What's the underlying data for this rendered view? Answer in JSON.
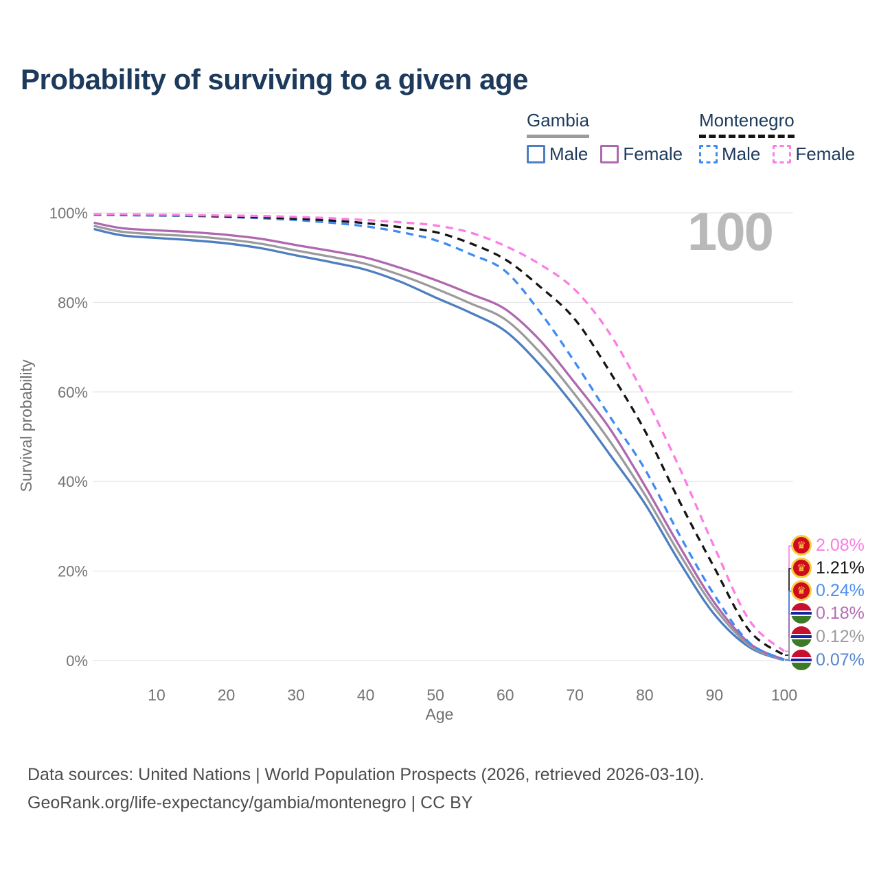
{
  "title": "Probability of surviving to a given age",
  "watermark_age": "100",
  "legend": {
    "groups": [
      {
        "label": "Gambia",
        "line_style": "solid",
        "line_color": "#9b9b9b",
        "items": [
          {
            "label": "Male",
            "color": "#4d7ec0"
          },
          {
            "label": "Female",
            "color": "#ae68af"
          }
        ]
      },
      {
        "label": "Montenegro",
        "line_style": "dashed",
        "line_color": "#151515",
        "items": [
          {
            "label": "Male",
            "color": "#3e8cf3"
          },
          {
            "label": "Female",
            "color": "#fb7de5"
          }
        ]
      }
    ]
  },
  "chart_data": {
    "type": "line",
    "title": "Probability of surviving to a given age",
    "xlabel": "Age",
    "ylabel": "Survival probability",
    "xlim": [
      1,
      100
    ],
    "ylim": [
      0,
      100
    ],
    "grid": "horizontal-only",
    "x_tick_values": [
      10,
      20,
      30,
      40,
      50,
      60,
      70,
      80,
      90,
      100
    ],
    "x_ticks": [
      "10",
      "20",
      "30",
      "40",
      "50",
      "60",
      "70",
      "80",
      "90",
      "100"
    ],
    "y_tick_values": [
      0,
      20,
      40,
      60,
      80,
      100
    ],
    "y_ticks": [
      "0%",
      "20%",
      "40%",
      "60%",
      "80%",
      "100%"
    ],
    "x": [
      1,
      5,
      10,
      15,
      20,
      25,
      30,
      35,
      40,
      45,
      50,
      55,
      60,
      65,
      70,
      75,
      80,
      85,
      90,
      95,
      100
    ],
    "series": [
      {
        "name": "gambia-male",
        "country": "Gambia",
        "sex": "Male",
        "style": "solid",
        "color": "#4d7ec0",
        "end_label": "0.07%",
        "values": [
          96.4,
          95.0,
          94.4,
          93.9,
          93.2,
          92.1,
          90.5,
          89.0,
          87.3,
          84.6,
          81.1,
          77.7,
          73.6,
          66.0,
          56.6,
          46.0,
          35.1,
          22.0,
          10.3,
          3.0,
          0.07
        ]
      },
      {
        "name": "gambia-combined",
        "country": "Gambia",
        "sex": "Both",
        "style": "solid",
        "color": "#9b9b9b",
        "end_label": "0.12%",
        "values": [
          97.1,
          95.8,
          95.2,
          94.8,
          94.1,
          93.1,
          91.6,
          90.2,
          88.6,
          86.1,
          83.1,
          79.8,
          76.2,
          68.8,
          59.4,
          49.0,
          37.1,
          23.8,
          11.8,
          3.4,
          0.12
        ]
      },
      {
        "name": "gambia-female",
        "country": "Gambia",
        "sex": "Female",
        "style": "solid",
        "color": "#ae68af",
        "end_label": "0.18%",
        "values": [
          97.8,
          96.6,
          96.1,
          95.7,
          95.1,
          94.2,
          92.8,
          91.5,
          90.0,
          87.7,
          85.0,
          81.9,
          78.5,
          71.5,
          62.0,
          51.8,
          39.1,
          25.5,
          12.9,
          3.9,
          0.18
        ]
      },
      {
        "name": "montenegro-male",
        "country": "Montenegro",
        "sex": "Male",
        "style": "dashed",
        "color": "#3e8cf3",
        "end_label": "0.24%",
        "values": [
          99.6,
          99.5,
          99.4,
          99.3,
          99.1,
          98.8,
          98.4,
          97.8,
          97.0,
          95.7,
          93.9,
          90.8,
          87.0,
          77.8,
          66.6,
          54.5,
          42.8,
          28.0,
          14.6,
          4.0,
          0.24
        ]
      },
      {
        "name": "montenegro-combined",
        "country": "Montenegro",
        "sex": "Both",
        "style": "dashed",
        "color": "#141414",
        "end_label": "1.21%",
        "values": [
          99.6,
          99.6,
          99.5,
          99.4,
          99.2,
          99.0,
          98.7,
          98.3,
          97.7,
          96.8,
          95.7,
          93.2,
          89.6,
          83.5,
          76.2,
          64.5,
          51.4,
          35.5,
          20.7,
          6.7,
          1.21
        ]
      },
      {
        "name": "montenegro-female",
        "country": "Montenegro",
        "sex": "Female",
        "style": "dashed",
        "color": "#fb7de5",
        "end_label": "2.08%",
        "values": [
          99.7,
          99.7,
          99.6,
          99.5,
          99.4,
          99.3,
          99.1,
          98.8,
          98.4,
          97.9,
          97.2,
          95.6,
          92.6,
          88.5,
          82.8,
          73.0,
          59.1,
          43.0,
          25.3,
          9.0,
          2.08
        ]
      }
    ],
    "legend_position": "top-right"
  },
  "end_labels": [
    {
      "series": "montenegro-female",
      "text": "2.08%",
      "color": "#fb7de5",
      "flag": "montenegro"
    },
    {
      "series": "montenegro-combined",
      "text": "1.21%",
      "color": "#141414",
      "flag": "montenegro"
    },
    {
      "series": "montenegro-male",
      "text": "0.24%",
      "color": "#4b8ff0",
      "flag": "montenegro"
    },
    {
      "series": "gambia-female",
      "text": "0.18%",
      "color": "#b66db4",
      "flag": "gambia"
    },
    {
      "series": "gambia-combined",
      "text": "0.12%",
      "color": "#9b9b9b",
      "flag": "gambia"
    },
    {
      "series": "gambia-male",
      "text": "0.07%",
      "color": "#5585cf",
      "flag": "gambia"
    }
  ],
  "footer": {
    "line1": "Data sources: United Nations | World Population Prospects (2026, retrieved 2026-03-10).",
    "line2": "GeoRank.org/life-expectancy/gambia/montenegro | CC BY"
  }
}
